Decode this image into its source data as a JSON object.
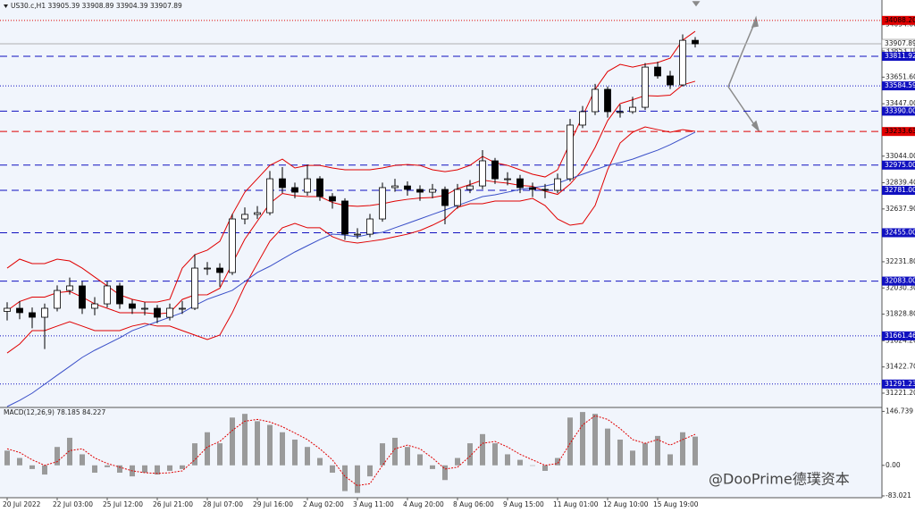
{
  "header": "US30.c,H1  33905.39 33908.89 33904.39 33907.89",
  "watermark": "@DooPrime德璞资本",
  "chart_data": [
    {
      "type": "candlestick",
      "categories": [
        "20 Jul 2022",
        null,
        null,
        null,
        "22 Jul 03:00",
        null,
        null,
        null,
        "25 Jul 12:00",
        null,
        null,
        null,
        "26 Jul 21:00",
        null,
        null,
        null,
        "28 Jul 07:00",
        null,
        null,
        null,
        "29 Jul 16:00",
        null,
        null,
        null,
        "2 Aug 02:00",
        null,
        null,
        null,
        "3 Aug 11:00",
        null,
        null,
        null,
        "4 Aug 20:00",
        null,
        null,
        null,
        "8 Aug 06:00",
        null,
        null,
        null,
        "9 Aug 15:00",
        null,
        null,
        null,
        "11 Aug 01:00",
        null,
        null,
        null,
        "12 Aug 10:00",
        null,
        null,
        null,
        "15 Aug 19:00",
        null,
        null,
        null
      ],
      "open": [
        31850,
        31874,
        31840,
        31805,
        31874,
        32011,
        32046,
        31874,
        31908,
        32046,
        31908,
        31874,
        31874,
        31805,
        31874,
        31874,
        32183,
        32183,
        32149,
        32561,
        32596,
        32609,
        32870,
        32802,
        32767,
        32870,
        32733,
        32699,
        32444,
        32444,
        32561,
        32802,
        32815,
        32788,
        32767,
        32788,
        32664,
        32788,
        32815,
        33008,
        32870,
        32870,
        32802,
        32788,
        32781,
        32870,
        33283,
        33386,
        33558,
        33386,
        33386,
        33420,
        33729,
        33661,
        33592,
        33935
      ],
      "high": [
        31920,
        31930,
        31880,
        31910,
        32050,
        32110,
        32080,
        31960,
        32080,
        32070,
        31940,
        31920,
        31900,
        31910,
        31930,
        32290,
        32230,
        32220,
        32600,
        32650,
        32660,
        32930,
        32960,
        32840,
        32980,
        32890,
        32760,
        32720,
        32490,
        32600,
        32840,
        32870,
        32850,
        32820,
        32830,
        32810,
        32830,
        32860,
        33090,
        33030,
        32920,
        32900,
        32840,
        32830,
        32910,
        33330,
        33430,
        33600,
        33580,
        33440,
        33500,
        33760,
        33770,
        33700,
        33980,
        33960
      ],
      "low": [
        31780,
        31790,
        31720,
        31560,
        31850,
        31980,
        31830,
        31820,
        31880,
        31870,
        31830,
        31820,
        31760,
        31780,
        31830,
        31860,
        32130,
        32040,
        32130,
        32520,
        32560,
        32590,
        32760,
        32720,
        32740,
        32700,
        32640,
        32400,
        32410,
        32420,
        32540,
        32770,
        32740,
        32700,
        32720,
        32520,
        32640,
        32760,
        32790,
        32830,
        32820,
        32760,
        32730,
        32720,
        32760,
        32850,
        33260,
        33360,
        33340,
        33340,
        33370,
        33400,
        33640,
        33560,
        33580,
        33880
      ],
      "close": [
        31874,
        31840,
        31805,
        31874,
        32011,
        32046,
        31874,
        31908,
        32046,
        31908,
        31874,
        31874,
        31805,
        31874,
        31874,
        32183,
        32183,
        32149,
        32561,
        32596,
        32609,
        32870,
        32802,
        32767,
        32870,
        32733,
        32699,
        32444,
        32444,
        32561,
        32802,
        32815,
        32788,
        32767,
        32788,
        32664,
        32788,
        32815,
        33008,
        32870,
        32870,
        32802,
        32788,
        32781,
        32870,
        33283,
        33386,
        33558,
        33386,
        33386,
        33420,
        33729,
        33661,
        33592,
        33935,
        33908
      ],
      "up_color": "#ffffff",
      "down_color": "#000000",
      "wick_color": "#000000",
      "bands": {
        "color": "#e00000",
        "upper": [
          32183,
          32252,
          32218,
          32218,
          32252,
          32238,
          32183,
          32114,
          32046,
          31977,
          31943,
          31922,
          31922,
          31943,
          32183,
          32286,
          32321,
          32389,
          32596,
          32767,
          32870,
          32973,
          33021,
          32953,
          32973,
          32973,
          32953,
          32939,
          32939,
          32939,
          32953,
          32973,
          32980,
          32973,
          32939,
          32925,
          32939,
          32973,
          33042,
          32994,
          32973,
          32939,
          32905,
          32884,
          32939,
          33145,
          33351,
          33558,
          33695,
          33750,
          33729,
          33750,
          33764,
          33798,
          33936,
          34004
        ],
        "middle": [
          31856,
          31926,
          31960,
          31960,
          31994,
          32004,
          31960,
          31908,
          31874,
          31840,
          31840,
          31840,
          31830,
          31840,
          31942,
          31977,
          31978,
          32028,
          32218,
          32406,
          32544,
          32681,
          32757,
          32740,
          32733,
          32733,
          32688,
          32664,
          32658,
          32664,
          32678,
          32698,
          32712,
          32722,
          32726,
          32743,
          32794,
          32826,
          32860,
          32846,
          32836,
          32819,
          32812,
          32774,
          32750,
          32829,
          32939,
          33111,
          33317,
          33448,
          33478,
          33510,
          33506,
          33513,
          33592,
          33620
        ],
        "lower": [
          31530,
          31599,
          31702,
          31702,
          31737,
          31771,
          31737,
          31702,
          31702,
          31702,
          31737,
          31757,
          31737,
          31737,
          31702,
          31668,
          31634,
          31668,
          31840,
          32046,
          32218,
          32389,
          32493,
          32527,
          32493,
          32493,
          32424,
          32389,
          32376,
          32389,
          32403,
          32424,
          32444,
          32472,
          32513,
          32561,
          32650,
          32678,
          32678,
          32699,
          32699,
          32699,
          32719,
          32664,
          32561,
          32513,
          32527,
          32664,
          32939,
          33145,
          33228,
          33269,
          33248,
          33228,
          33248,
          33235
        ]
      },
      "ma": {
        "color": "#3a4fc8",
        "values": [
          31118,
          31166,
          31221,
          31290,
          31359,
          31427,
          31496,
          31551,
          31599,
          31647,
          31702,
          31737,
          31771,
          31805,
          31840,
          31895,
          31943,
          31977,
          32012,
          32080,
          32149,
          32197,
          32252,
          32307,
          32355,
          32403,
          32444,
          32437,
          32424,
          32444,
          32458,
          32493,
          32527,
          32561,
          32596,
          32630,
          32664,
          32699,
          32733,
          32747,
          32767,
          32788,
          32802,
          32815,
          32836,
          32870,
          32905,
          32939,
          32973,
          32994,
          33021,
          33056,
          33090,
          33132,
          33180,
          33228
        ]
      },
      "ylim": [
        31118,
        34245
      ],
      "yticks": [
        {
          "value": 34054.6,
          "label": "34054.60"
        },
        {
          "value": 33853.1,
          "label": "33853.10"
        },
        {
          "value": 33651.6,
          "label": "33651.60"
        },
        {
          "value": 33447,
          "label": "33447.00"
        },
        {
          "value": 33044,
          "label": "33044.00"
        },
        {
          "value": 32839.4,
          "label": "32839.40"
        },
        {
          "value": 32637.9,
          "label": "32637.90"
        },
        {
          "value": 32231.8,
          "label": "32231.80"
        },
        {
          "value": 32030.3,
          "label": "32030.30"
        },
        {
          "value": 31828.8,
          "label": "31828.80"
        },
        {
          "value": 31624.2,
          "label": "31624.20"
        },
        {
          "value": 31422.7,
          "label": "31422.70"
        },
        {
          "value": 31221.2,
          "label": "31221.20"
        }
      ],
      "levels": [
        {
          "value": 34088.2,
          "label": "34088.20",
          "color": "#e00000",
          "label_color": "#000000",
          "style": "dotted"
        },
        {
          "value": 33811.92,
          "label": "33811.92",
          "color": "#1010c0",
          "label_color": "#ffffff",
          "style": "dashed"
        },
        {
          "value": 33584.59,
          "label": "33584.59",
          "color": "#1010c0",
          "label_color": "#ffffff",
          "style": "dotted"
        },
        {
          "value": 33390,
          "label": "33390.00",
          "color": "#1010c0",
          "label_color": "#ffffff",
          "style": "dashed"
        },
        {
          "value": 33233.63,
          "label": "33233.63",
          "color": "#e00000",
          "label_color": "#000000",
          "style": "dashed"
        },
        {
          "value": 32975,
          "label": "32975.00",
          "color": "#1010c0",
          "label_color": "#ffffff",
          "style": "dashed"
        },
        {
          "value": 32781,
          "label": "32781.00",
          "color": "#1010c0",
          "label_color": "#ffffff",
          "style": "dashed"
        },
        {
          "value": 32455,
          "label": "32455.00",
          "color": "#1010c0",
          "label_color": "#ffffff",
          "style": "dashed"
        },
        {
          "value": 32083,
          "label": "32083.00",
          "color": "#1010c0",
          "label_color": "#ffffff",
          "style": "dashed"
        },
        {
          "value": 31661.46,
          "label": "31661.46",
          "color": "#1010c0",
          "label_color": "#ffffff",
          "style": "dotted"
        },
        {
          "value": 31291.23,
          "label": "31291.23",
          "color": "#1010c0",
          "label_color": "#ffffff",
          "style": "dotted"
        }
      ],
      "current": {
        "value": 33907.89,
        "label": "33907.89",
        "color": "#b0b0b0"
      }
    },
    {
      "type": "macd",
      "title": "MACD(12,26,9) 78.185 84.227",
      "histogram": [
        40,
        20,
        -10,
        -25,
        50,
        75,
        30,
        -20,
        -5,
        -20,
        -30,
        -20,
        -25,
        -15,
        -10,
        60,
        90,
        60,
        130,
        140,
        120,
        110,
        90,
        70,
        50,
        20,
        -20,
        -70,
        -75,
        -30,
        60,
        75,
        50,
        30,
        -10,
        -40,
        20,
        60,
        85,
        60,
        30,
        15,
        0,
        -15,
        20,
        130,
        145,
        140,
        100,
        70,
        40,
        60,
        80,
        30,
        90,
        78.185
      ],
      "signal": [
        45,
        35,
        15,
        0,
        10,
        40,
        45,
        20,
        5,
        -5,
        -15,
        -20,
        -22,
        -20,
        -15,
        15,
        50,
        65,
        95,
        120,
        125,
        118,
        105,
        88,
        70,
        45,
        15,
        -30,
        -55,
        -50,
        0,
        45,
        55,
        45,
        20,
        -10,
        -5,
        25,
        60,
        65,
        50,
        30,
        15,
        0,
        5,
        60,
        110,
        135,
        125,
        100,
        70,
        60,
        70,
        55,
        70,
        84.227
      ],
      "histogram_color": "#9a9a9a",
      "signal_color": "#e00000",
      "ylim": [
        -88,
        155
      ],
      "yticks": [
        146.739,
        {
          "value": 0,
          "label": "0.00"
        },
        -83.021
      ]
    }
  ]
}
